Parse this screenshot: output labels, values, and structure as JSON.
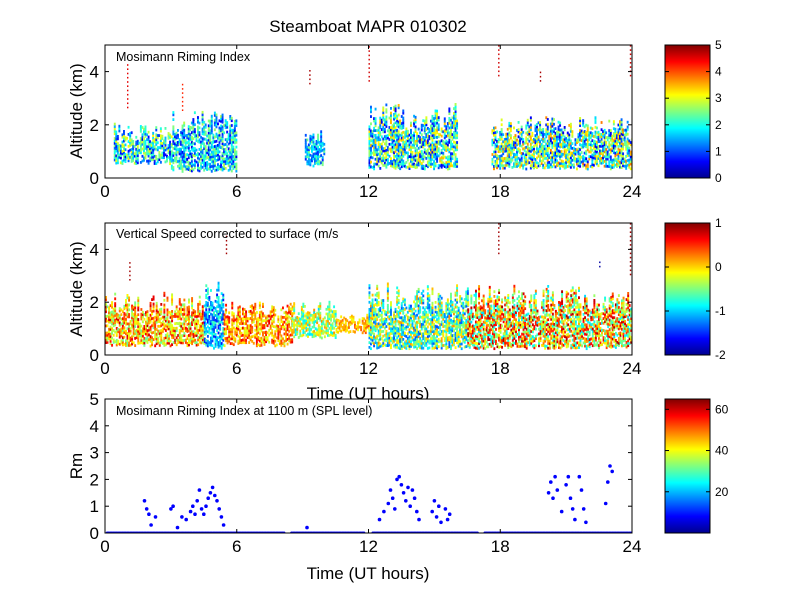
{
  "figure_title": "Steamboat MAPR 010302",
  "chart_data": [
    {
      "type": "heatmap",
      "annotation": "Mosimann Riming Index",
      "xlabel": "",
      "ylabel": "Altitude (km)",
      "xlim": [
        0,
        24
      ],
      "ylim": [
        0,
        5
      ],
      "xticks": [
        "0",
        "6",
        "12",
        "18",
        "24"
      ],
      "yticks": [
        "0",
        "2",
        "4"
      ],
      "colorbar": {
        "range": [
          0,
          5
        ],
        "ticks": [
          "0",
          "1",
          "2",
          "3",
          "4",
          "5"
        ]
      },
      "echo_regions": [
        {
          "t_start": 0.4,
          "t_end": 3.0,
          "z_low": 0.5,
          "z_high": 2.0,
          "value_range": [
            0.5,
            3.2
          ]
        },
        {
          "t_start": 3.0,
          "t_end": 6.0,
          "z_low": 0.2,
          "z_high": 2.5,
          "value_range": [
            0.5,
            2.8
          ]
        },
        {
          "t_start": 9.1,
          "t_end": 10.0,
          "z_low": 0.4,
          "z_high": 1.8,
          "value_range": [
            0.8,
            2.5
          ]
        },
        {
          "t_start": 12.0,
          "t_end": 16.0,
          "z_low": 0.3,
          "z_high": 2.8,
          "value_range": [
            0.5,
            3.5
          ]
        },
        {
          "t_start": 17.6,
          "t_end": 24.0,
          "z_low": 0.3,
          "z_high": 2.3,
          "value_range": [
            0.5,
            3.8
          ]
        }
      ],
      "sparse_columns": [
        {
          "t": 1.0,
          "z_low": 2.6,
          "z_high": 4.3,
          "value": 4.5
        },
        {
          "t": 3.5,
          "z_low": 2.5,
          "z_high": 3.5,
          "value": 4.2
        },
        {
          "t": 9.3,
          "z_low": 3.5,
          "z_high": 4.0,
          "value": 4.8
        },
        {
          "t": 12.0,
          "z_low": 3.6,
          "z_high": 5.0,
          "value": 4.6
        },
        {
          "t": 17.9,
          "z_low": 3.8,
          "z_high": 5.0,
          "value": 4.6
        },
        {
          "t": 19.8,
          "z_low": 3.6,
          "z_high": 4.0,
          "value": 4.8
        },
        {
          "t": 23.9,
          "z_low": 3.8,
          "z_high": 5.0,
          "value": 4.6
        }
      ]
    },
    {
      "type": "heatmap",
      "annotation": "Vertical Speed corrected to surface (m/s",
      "xlabel": "Time (UT hours)",
      "ylabel": "Altitude (km)",
      "xlim": [
        0,
        24
      ],
      "ylim": [
        0,
        5
      ],
      "xticks": [
        "0",
        "6",
        "12",
        "18",
        "24"
      ],
      "yticks": [
        "0",
        "2",
        "4"
      ],
      "colorbar": {
        "range": [
          -2,
          1
        ],
        "ticks": [
          "-2",
          "-1",
          "0",
          "1"
        ]
      },
      "echo_regions": [
        {
          "t_start": 0.0,
          "t_end": 4.5,
          "z_low": 0.3,
          "z_high": 2.4,
          "value_range": [
            -0.6,
            0.8
          ]
        },
        {
          "t_start": 4.5,
          "t_end": 5.4,
          "z_low": 0.2,
          "z_high": 2.8,
          "value_range": [
            -1.6,
            -0.6
          ]
        },
        {
          "t_start": 5.4,
          "t_end": 8.5,
          "z_low": 0.3,
          "z_high": 2.0,
          "value_range": [
            -0.3,
            0.7
          ]
        },
        {
          "t_start": 8.5,
          "t_end": 10.5,
          "z_low": 0.6,
          "z_high": 2.0,
          "value_range": [
            -1.0,
            0.2
          ]
        },
        {
          "t_start": 10.5,
          "t_end": 12.0,
          "z_low": 0.8,
          "z_high": 1.6,
          "value_range": [
            -0.2,
            0.4
          ]
        },
        {
          "t_start": 12.0,
          "t_end": 16.5,
          "z_low": 0.2,
          "z_high": 2.7,
          "value_range": [
            -1.4,
            0.2
          ]
        },
        {
          "t_start": 16.5,
          "t_end": 24.0,
          "z_low": 0.2,
          "z_high": 2.6,
          "value_range": [
            -1.0,
            0.9
          ]
        }
      ],
      "sparse_columns": [
        {
          "t": 1.1,
          "z_low": 2.8,
          "z_high": 3.6,
          "value": 0.9
        },
        {
          "t": 5.5,
          "z_low": 3.8,
          "z_high": 4.6,
          "value": 0.9
        },
        {
          "t": 17.9,
          "z_low": 3.8,
          "z_high": 5.0,
          "value": 0.9
        },
        {
          "t": 22.5,
          "z_low": 3.3,
          "z_high": 3.6,
          "value": -1.9
        },
        {
          "t": 23.9,
          "z_low": 3.0,
          "z_high": 5.0,
          "value": 0.9
        }
      ]
    },
    {
      "type": "scatter",
      "annotation": "Mosimann Riming Index at 1100 m (SPL level)",
      "xlabel": "Time (UT hours)",
      "ylabel": "Rm",
      "xlim": [
        0,
        24
      ],
      "ylim": [
        0,
        5
      ],
      "xticks": [
        "0",
        "6",
        "12",
        "18",
        "24"
      ],
      "yticks": [
        "0",
        "1",
        "2",
        "3",
        "4",
        "5"
      ],
      "colorbar": {
        "range": [
          0,
          65
        ],
        "ticks": [
          "20",
          "40",
          "60"
        ]
      },
      "baseline_segments": [
        [
          0.1,
          8.2
        ],
        [
          8.5,
          11.8
        ],
        [
          12.2,
          17.0
        ],
        [
          17.3,
          24.0
        ]
      ],
      "points": [
        [
          1.8,
          1.2
        ],
        [
          1.9,
          0.9
        ],
        [
          2.0,
          0.7
        ],
        [
          2.1,
          0.3
        ],
        [
          2.3,
          0.6
        ],
        [
          3.0,
          0.9
        ],
        [
          3.1,
          1.0
        ],
        [
          3.3,
          0.2
        ],
        [
          3.5,
          0.6
        ],
        [
          3.7,
          0.5
        ],
        [
          3.9,
          0.8
        ],
        [
          4.0,
          1.0
        ],
        [
          4.1,
          0.7
        ],
        [
          4.2,
          1.2
        ],
        [
          4.3,
          1.6
        ],
        [
          4.4,
          0.9
        ],
        [
          4.5,
          0.7
        ],
        [
          4.6,
          1.0
        ],
        [
          4.7,
          1.3
        ],
        [
          4.8,
          1.5
        ],
        [
          4.9,
          1.7
        ],
        [
          5.0,
          1.4
        ],
        [
          5.1,
          1.2
        ],
        [
          5.2,
          0.9
        ],
        [
          5.3,
          0.6
        ],
        [
          5.4,
          0.3
        ],
        [
          9.2,
          0.2
        ],
        [
          12.5,
          0.5
        ],
        [
          12.7,
          0.8
        ],
        [
          12.9,
          1.1
        ],
        [
          13.0,
          1.6
        ],
        [
          13.1,
          1.3
        ],
        [
          13.2,
          0.9
        ],
        [
          13.3,
          2.0
        ],
        [
          13.4,
          2.1
        ],
        [
          13.5,
          1.8
        ],
        [
          13.6,
          1.5
        ],
        [
          13.7,
          1.2
        ],
        [
          13.8,
          1.7
        ],
        [
          13.9,
          1.0
        ],
        [
          14.0,
          1.6
        ],
        [
          14.1,
          1.3
        ],
        [
          14.2,
          0.8
        ],
        [
          14.3,
          0.5
        ],
        [
          14.9,
          0.8
        ],
        [
          15.0,
          1.2
        ],
        [
          15.1,
          0.6
        ],
        [
          15.2,
          1.0
        ],
        [
          15.3,
          0.4
        ],
        [
          15.5,
          0.9
        ],
        [
          15.6,
          0.5
        ],
        [
          15.7,
          0.7
        ],
        [
          20.2,
          1.5
        ],
        [
          20.3,
          1.9
        ],
        [
          20.4,
          1.3
        ],
        [
          20.5,
          2.1
        ],
        [
          20.6,
          1.6
        ],
        [
          20.8,
          0.8
        ],
        [
          21.0,
          1.8
        ],
        [
          21.1,
          2.1
        ],
        [
          21.2,
          1.3
        ],
        [
          21.3,
          0.9
        ],
        [
          21.4,
          0.5
        ],
        [
          21.6,
          2.1
        ],
        [
          21.7,
          1.6
        ],
        [
          21.8,
          0.9
        ],
        [
          21.9,
          0.4
        ],
        [
          22.8,
          1.1
        ],
        [
          22.9,
          1.9
        ],
        [
          23.0,
          2.5
        ],
        [
          23.1,
          2.3
        ]
      ]
    }
  ]
}
